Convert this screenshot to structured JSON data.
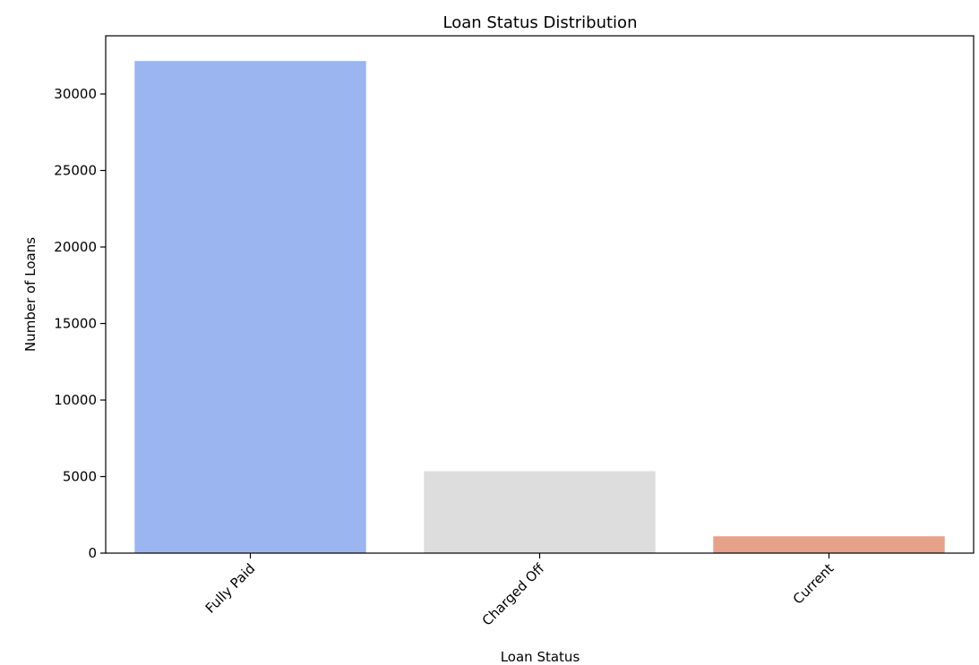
{
  "chart_data": {
    "type": "bar",
    "title": "Loan Status Distribution",
    "xlabel": "Loan Status",
    "ylabel": "Number of Loans",
    "categories": [
      "Fully Paid",
      "Charged Off",
      "Current"
    ],
    "values": [
      32150,
      5350,
      1100
    ],
    "colors": [
      "#9ab5f0",
      "#dddddd",
      "#e6a189"
    ],
    "ylim": [
      0,
      33800
    ],
    "yticks": [
      0,
      5000,
      10000,
      15000,
      20000,
      25000,
      30000
    ],
    "ytick_labels": [
      "0",
      "5000",
      "10000",
      "15000",
      "20000",
      "25000",
      "30000"
    ],
    "xtick_rotation_deg": 45,
    "grid": false,
    "legend": "none"
  }
}
